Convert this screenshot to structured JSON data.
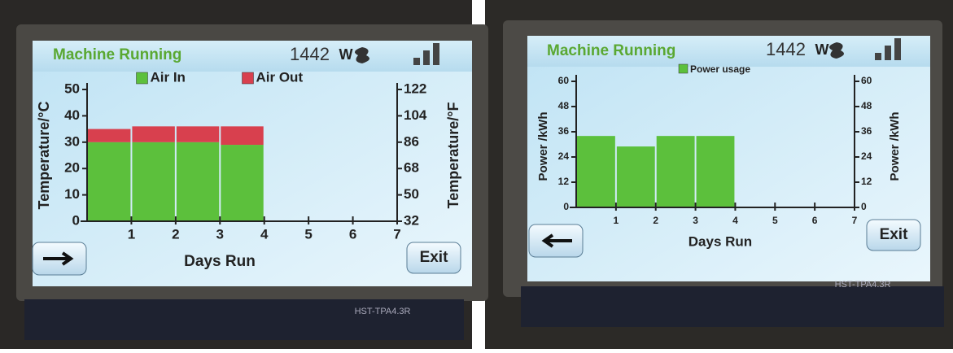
{
  "screens": [
    {
      "status": "Machine Running",
      "power": 1442,
      "unit": "W",
      "button": "Exit",
      "board": "HST-TPA4.3R"
    },
    {
      "status": "Machine Running",
      "power": 1442,
      "unit": "W",
      "button": "Exit",
      "board": "HST-TPA4.3R"
    }
  ],
  "chart_data": [
    {
      "type": "histogram",
      "stacked": true,
      "bins": [
        0,
        1,
        2,
        3,
        4
      ],
      "series": [
        {
          "name": "Air In",
          "color": "#5cc03c",
          "values": [
            30,
            30,
            30,
            29
          ]
        },
        {
          "name": "Air Out",
          "color": "#d8404e",
          "values": [
            5,
            6,
            6,
            7
          ]
        }
      ],
      "xlabel": "Days Run",
      "ylabel": "Temperature/°C",
      "y2label": "Temperature/°F",
      "xlim": [
        0,
        7
      ],
      "xticks": [
        1,
        2,
        3,
        4,
        5,
        6,
        7
      ],
      "ylim": [
        0,
        50
      ],
      "yticks": [
        0,
        10,
        20,
        30,
        40,
        50
      ],
      "y2lim": [
        32,
        122
      ],
      "y2ticks": [
        32,
        50,
        68,
        86,
        104,
        122
      ]
    },
    {
      "type": "histogram",
      "stacked": true,
      "bins": [
        0,
        1,
        2,
        3,
        4
      ],
      "series": [
        {
          "name": "Power usage",
          "color": "#5cc03c",
          "values": [
            34,
            29,
            34,
            34
          ]
        }
      ],
      "xlabel": "Days Run",
      "ylabel": "Power /kWh",
      "y2label": "Power /kWh",
      "xlim": [
        0,
        7
      ],
      "xticks": [
        1,
        2,
        3,
        4,
        5,
        6,
        7
      ],
      "ylim": [
        0,
        60
      ],
      "yticks": [
        0,
        12,
        24,
        36,
        48,
        60
      ],
      "y2lim": [
        0,
        60
      ],
      "y2ticks": [
        0,
        12,
        24,
        36,
        48,
        60
      ]
    }
  ]
}
